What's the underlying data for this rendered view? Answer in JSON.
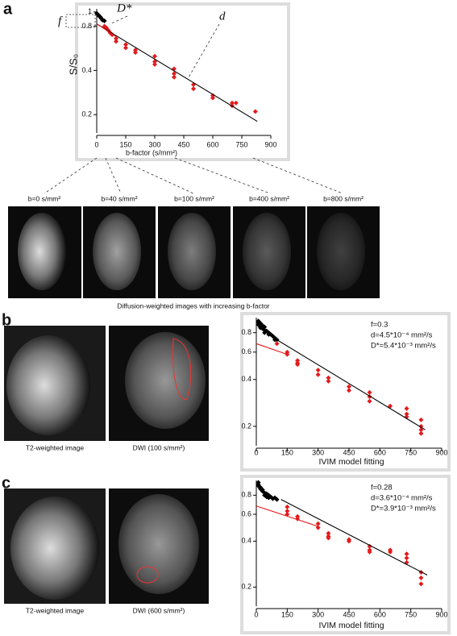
{
  "panel_labels": [
    "a",
    "b",
    "c"
  ],
  "image_row": {
    "labels": [
      "b=0 s/mm²",
      "b=40 s/mm²",
      "b=100 s/mm²",
      "b=400 s/mm²",
      "b=800 s/mm²"
    ],
    "caption": "Diffusion-weighted images with increasing b-factor"
  },
  "panel_b": {
    "captions": [
      "T2-weighted image",
      "DWI (100 s/mm²)"
    ]
  },
  "panel_c": {
    "captions": [
      "T2-weighted image",
      "DWI (600 s/mm²)"
    ]
  },
  "chart_data": [
    {
      "type": "scatter",
      "ylabel": "S/S₀",
      "xlabel": "b-factor (s/mm²)",
      "log_y": true,
      "annotations": [
        "f",
        "D*",
        "d"
      ],
      "xlim": [
        0,
        900
      ],
      "xticks": [
        0,
        150,
        300,
        450,
        600,
        750,
        900
      ],
      "ylim": [
        0.15,
        1.05
      ],
      "yticks": [
        0.2,
        0.4,
        0.8,
        1
      ],
      "series": [
        {
          "color": "#000000",
          "marker": "diamond",
          "x": [
            0,
            5,
            10,
            15,
            20,
            25,
            30,
            40
          ],
          "values": [
            0.98,
            0.96,
            0.95,
            0.93,
            0.92,
            0.9,
            0.88,
            0.87
          ]
        },
        {
          "color": "#e41a1c",
          "marker": "diamond",
          "x": [
            40,
            50,
            60,
            70,
            80,
            100,
            100,
            150,
            150,
            200,
            200,
            300,
            300,
            300,
            400,
            400,
            400,
            500,
            500,
            600,
            600,
            700,
            700,
            720,
            820
          ],
          "values": [
            0.8,
            0.78,
            0.75,
            0.72,
            0.7,
            0.66,
            0.63,
            0.6,
            0.57,
            0.55,
            0.53,
            0.5,
            0.46,
            0.44,
            0.41,
            0.38,
            0.36,
            0.32,
            0.3,
            0.27,
            0.26,
            0.24,
            0.23,
            0.24,
            0.21
          ]
        },
        {
          "color": "#000000",
          "marker": "line",
          "x": [
            0,
            830
          ],
          "values": [
            0.83,
            0.18
          ]
        },
        {
          "color": "#e41a1c",
          "marker": "line",
          "x": [
            0,
            100
          ],
          "values": [
            0.83,
            0.68
          ]
        }
      ]
    },
    {
      "type": "scatter",
      "xlabel": "IVIM model fitting",
      "log_y": true,
      "notes": [
        "f=0.3",
        "d=4.5*10⁻⁴ mm²/s",
        "D*=5.4*10⁻³ mm²/s"
      ],
      "xlim": [
        0,
        900
      ],
      "xticks": [
        0,
        150,
        300,
        450,
        600,
        750,
        900
      ],
      "ylim": [
        0.15,
        1.0
      ],
      "yticks": [
        0.2,
        0.4,
        0.6,
        0.8
      ],
      "series": [
        {
          "color": "#000000",
          "marker": "diamond",
          "x": [
            10,
            10,
            10,
            20,
            20,
            20,
            30,
            30,
            40,
            40,
            40,
            50,
            60,
            60,
            70,
            80,
            90,
            90,
            100
          ],
          "values": [
            0.95,
            0.93,
            0.9,
            0.92,
            0.88,
            0.86,
            0.89,
            0.85,
            0.87,
            0.83,
            0.8,
            0.82,
            0.8,
            0.78,
            0.78,
            0.76,
            0.74,
            0.72,
            0.72
          ]
        },
        {
          "color": "#e41a1c",
          "marker": "diamond",
          "x": [
            100,
            150,
            150,
            200,
            200,
            200,
            300,
            300,
            350,
            350,
            450,
            450,
            550,
            550,
            550,
            650,
            730,
            730,
            730,
            800,
            800,
            800,
            800
          ],
          "values": [
            0.68,
            0.6,
            0.58,
            0.53,
            0.51,
            0.5,
            0.46,
            0.43,
            0.41,
            0.39,
            0.36,
            0.34,
            0.33,
            0.31,
            0.29,
            0.27,
            0.26,
            0.24,
            0.23,
            0.22,
            0.2,
            0.19,
            0.18
          ]
        },
        {
          "color": "#000000",
          "marker": "line",
          "x": [
            100,
            820
          ],
          "values": [
            0.72,
            0.19
          ]
        },
        {
          "color": "#e41a1c",
          "marker": "line",
          "x": [
            0,
            150
          ],
          "values": [
            0.68,
            0.58
          ]
        }
      ]
    },
    {
      "type": "scatter",
      "xlabel": "IVIM model fitting",
      "log_y": true,
      "notes": [
        "f=0.28",
        "d=3.6*10⁻⁴ mm²/s",
        "D*=3.9*10⁻³ mm²/s"
      ],
      "xlim": [
        0,
        900
      ],
      "xticks": [
        0,
        150,
        300,
        450,
        600,
        750,
        900
      ],
      "ylim": [
        0.15,
        1.0
      ],
      "yticks": [
        0.2,
        0.4,
        0.6,
        0.8
      ],
      "series": [
        {
          "color": "#000000",
          "marker": "diamond",
          "x": [
            10,
            10,
            10,
            20,
            20,
            30,
            30,
            40,
            40,
            50,
            50,
            60,
            60,
            70,
            80,
            90,
            100
          ],
          "values": [
            0.97,
            0.94,
            0.92,
            0.9,
            0.88,
            0.87,
            0.85,
            0.83,
            0.8,
            0.82,
            0.78,
            0.8,
            0.77,
            0.78,
            0.76,
            0.77,
            0.75
          ]
        },
        {
          "color": "#e41a1c",
          "marker": "diamond",
          "x": [
            150,
            150,
            150,
            200,
            200,
            300,
            300,
            350,
            350,
            350,
            450,
            450,
            550,
            550,
            550,
            650,
            650,
            730,
            730,
            730,
            800,
            800,
            800
          ],
          "values": [
            0.67,
            0.63,
            0.6,
            0.58,
            0.56,
            0.52,
            0.49,
            0.45,
            0.43,
            0.42,
            0.41,
            0.4,
            0.37,
            0.35,
            0.34,
            0.35,
            0.34,
            0.33,
            0.31,
            0.29,
            0.25,
            0.23,
            0.21
          ]
        },
        {
          "color": "#000000",
          "marker": "line",
          "x": [
            120,
            830
          ],
          "values": [
            0.75,
            0.24
          ]
        },
        {
          "color": "#e41a1c",
          "marker": "line",
          "x": [
            0,
            300
          ],
          "values": [
            0.68,
            0.5
          ]
        }
      ]
    }
  ]
}
